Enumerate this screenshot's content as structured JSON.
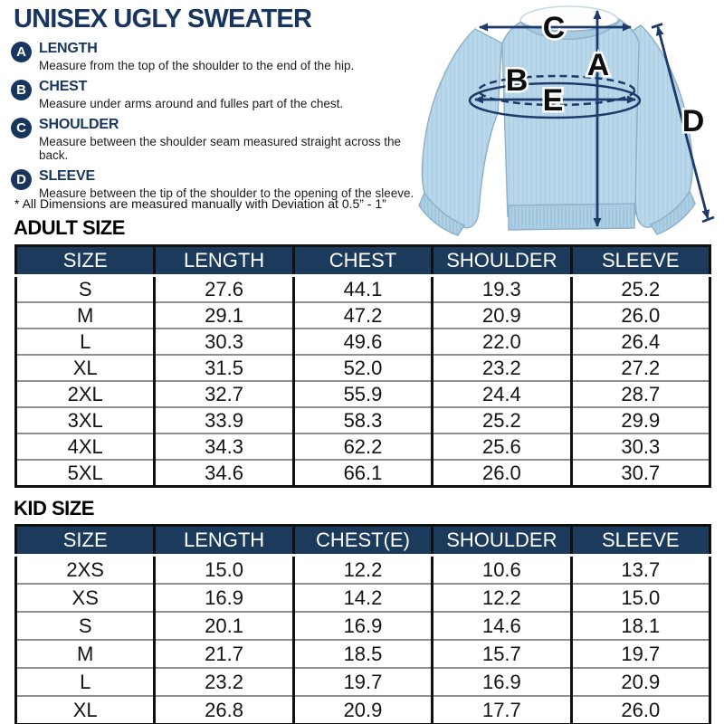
{
  "title": "UNISEX UGLY SWEATER",
  "legend": {
    "items": [
      {
        "key": "A",
        "label": "LENGTH",
        "desc": "Measure from the top of the shoulder to the end of the hip."
      },
      {
        "key": "B",
        "label": "CHEST",
        "desc": "Measure under arms around and fulles part of the chest."
      },
      {
        "key": "C",
        "label": "SHOULDER",
        "desc": "Measure between the shoulder seam measured straight across the back."
      },
      {
        "key": "D",
        "label": "SLEEVE",
        "desc": "Measure between the tip of the shoulder to the opening of the sleeve."
      }
    ],
    "note": "* All Dimensions are measured manually with Deviation at 0.5” - 1”"
  },
  "diagram": {
    "labels": [
      "A",
      "B",
      "C",
      "D",
      "E"
    ],
    "colors": {
      "sweater": "#b9d7ea",
      "collar": "#fdfdfd",
      "arrow": "#1d3a6b"
    }
  },
  "adult": {
    "heading": "ADULT SIZE",
    "columns": [
      "SIZE",
      "LENGTH",
      "CHEST",
      "SHOULDER",
      "SLEEVE"
    ],
    "rows": [
      [
        "S",
        "27.6",
        "44.1",
        "19.3",
        "25.2"
      ],
      [
        "M",
        "29.1",
        "47.2",
        "20.9",
        "26.0"
      ],
      [
        "L",
        "30.3",
        "49.6",
        "22.0",
        "26.4"
      ],
      [
        "XL",
        "31.5",
        "52.0",
        "23.2",
        "27.2"
      ],
      [
        "2XL",
        "32.7",
        "55.9",
        "24.4",
        "28.7"
      ],
      [
        "3XL",
        "33.9",
        "58.3",
        "25.2",
        "29.9"
      ],
      [
        "4XL",
        "34.3",
        "62.2",
        "25.6",
        "30.3"
      ],
      [
        "5XL",
        "34.6",
        "66.1",
        "26.0",
        "30.7"
      ]
    ]
  },
  "kid": {
    "heading": "KID SIZE",
    "columns": [
      "SIZE",
      "LENGTH",
      "CHEST(E)",
      "SHOULDER",
      "SLEEVE"
    ],
    "rows": [
      [
        "2XS",
        "15.0",
        "12.2",
        "10.6",
        "13.7"
      ],
      [
        "XS",
        "16.9",
        "14.2",
        "12.2",
        "15.0"
      ],
      [
        "S",
        "20.1",
        "16.9",
        "14.6",
        "18.1"
      ],
      [
        "M",
        "21.7",
        "18.5",
        "15.7",
        "19.7"
      ],
      [
        "L",
        "23.2",
        "19.7",
        "16.9",
        "20.9"
      ],
      [
        "XL",
        "26.8",
        "20.9",
        "17.7",
        "26.0"
      ]
    ]
  }
}
